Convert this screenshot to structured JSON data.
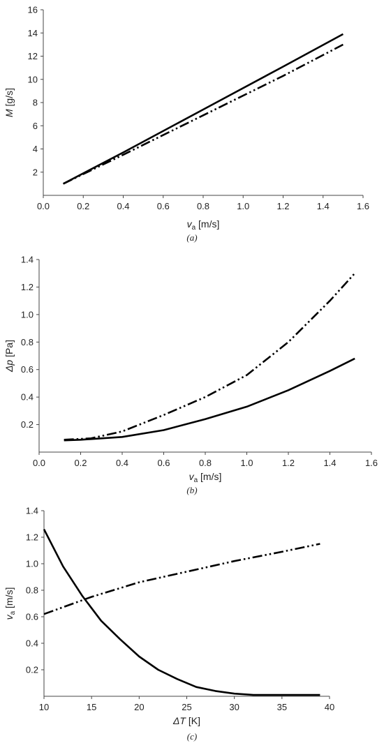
{
  "chart_data": [
    {
      "type": "line",
      "caption": "(a)",
      "ylabel": {
        "var": "M",
        "unit": " [g/s]"
      },
      "xlabel": {
        "var": "v",
        "sub": "a",
        "unit": " [m/s]"
      },
      "xlim": [
        0.0,
        1.6
      ],
      "ylim": [
        0,
        16
      ],
      "xticks": [
        "0.0",
        "0.2",
        "0.4",
        "0.6",
        "0.8",
        "1.0",
        "1.2",
        "1.4",
        "1.6"
      ],
      "yticks": [
        "2",
        "4",
        "6",
        "8",
        "10",
        "12",
        "14",
        "16"
      ],
      "series": [
        {
          "style": "solid",
          "x": [
            0.1,
            0.4,
            0.8,
            1.2,
            1.5
          ],
          "y": [
            1.0,
            3.7,
            7.4,
            11.1,
            13.9
          ]
        },
        {
          "style": "dashdot",
          "x": [
            0.1,
            0.4,
            0.8,
            1.2,
            1.5
          ],
          "y": [
            1.0,
            3.5,
            6.9,
            10.3,
            13.0
          ]
        }
      ]
    },
    {
      "type": "line",
      "caption": "(b)",
      "ylabel": {
        "var": "Δp",
        "unit": " [Pa]"
      },
      "xlabel": {
        "var": "v",
        "sub": "a",
        "unit": " [m/s]"
      },
      "xlim": [
        0.0,
        1.6
      ],
      "ylim": [
        0,
        1.4
      ],
      "xticks": [
        "0.0",
        "0.2",
        "0.4",
        "0.6",
        "0.8",
        "1.0",
        "1.2",
        "1.4",
        "1.6"
      ],
      "yticks": [
        "0.2",
        "0.4",
        "0.6",
        "0.8",
        "1.0",
        "1.2",
        "1.4"
      ],
      "series": [
        {
          "style": "solid",
          "x": [
            0.12,
            0.2,
            0.4,
            0.6,
            0.8,
            1.0,
            1.2,
            1.4,
            1.52
          ],
          "y": [
            0.085,
            0.09,
            0.11,
            0.16,
            0.24,
            0.33,
            0.45,
            0.59,
            0.68
          ]
        },
        {
          "style": "dashdot",
          "x": [
            0.12,
            0.25,
            0.4,
            0.6,
            0.8,
            1.0,
            1.2,
            1.4,
            1.52
          ],
          "y": [
            0.09,
            0.1,
            0.15,
            0.27,
            0.4,
            0.56,
            0.8,
            1.1,
            1.3
          ]
        }
      ]
    },
    {
      "type": "line",
      "caption": "(c)",
      "ylabel": {
        "var": "v",
        "sub": "a",
        "unit": " [m/s]"
      },
      "xlabel": {
        "var": "ΔT",
        "unit": " [K]"
      },
      "xlim": [
        10,
        40
      ],
      "ylim": [
        0,
        1.4
      ],
      "xticks": [
        "10",
        "15",
        "20",
        "25",
        "30",
        "35",
        "40"
      ],
      "yticks": [
        "0.2",
        "0.4",
        "0.6",
        "0.8",
        "1.0",
        "1.2",
        "1.4"
      ],
      "series": [
        {
          "style": "solid",
          "x": [
            10,
            12,
            14,
            16,
            18,
            20,
            22,
            24,
            26,
            28,
            30,
            32,
            35,
            39
          ],
          "y": [
            1.26,
            0.98,
            0.76,
            0.57,
            0.43,
            0.3,
            0.2,
            0.13,
            0.07,
            0.04,
            0.02,
            0.01,
            0.01,
            0.01
          ]
        },
        {
          "style": "dashdot",
          "x": [
            10,
            15,
            20,
            25,
            30,
            35,
            39
          ],
          "y": [
            0.62,
            0.75,
            0.86,
            0.94,
            1.02,
            1.09,
            1.15
          ]
        }
      ]
    }
  ]
}
